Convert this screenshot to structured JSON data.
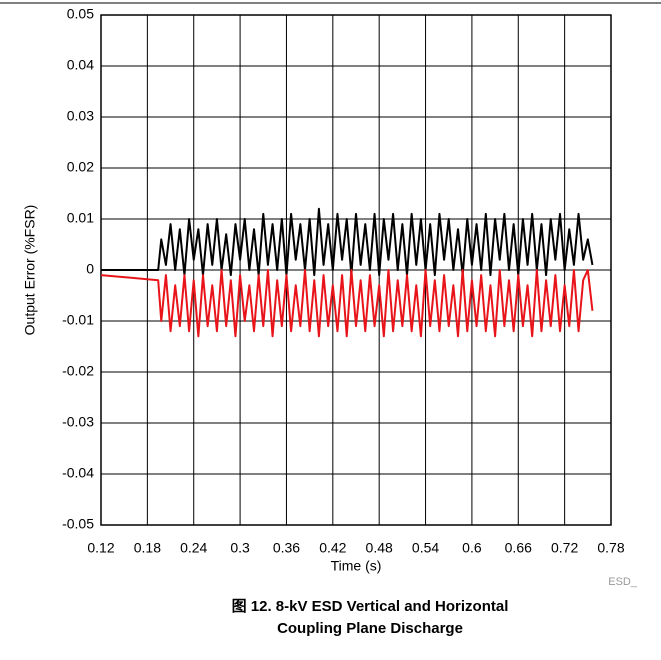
{
  "chart_data": {
    "type": "line",
    "ylabel": "Output Error (%FSR)",
    "xlabel": "Time (s)",
    "caption": "图 12. 8-kV ESD Vertical and Horizontal Coupling Plane Discharge",
    "source_label": "ESD_",
    "xlim": [
      0.12,
      0.78
    ],
    "xticks": [
      0.12,
      0.18,
      0.24,
      0.3,
      0.36,
      0.42,
      0.48,
      0.54,
      0.6,
      0.66,
      0.72,
      0.78
    ],
    "ylim": [
      -0.05,
      0.05
    ],
    "yticks": [
      0.05,
      0.04,
      0.03,
      0.02,
      0.01,
      0,
      -0.01,
      -0.02,
      -0.03,
      -0.04,
      -0.05
    ],
    "grid": true,
    "x": [
      0.12,
      0.194,
      0.198,
      0.204,
      0.21,
      0.216,
      0.222,
      0.228,
      0.234,
      0.24,
      0.246,
      0.252,
      0.258,
      0.264,
      0.27,
      0.276,
      0.282,
      0.288,
      0.294,
      0.3,
      0.306,
      0.312,
      0.318,
      0.324,
      0.33,
      0.336,
      0.342,
      0.348,
      0.354,
      0.36,
      0.366,
      0.372,
      0.378,
      0.384,
      0.39,
      0.396,
      0.402,
      0.408,
      0.414,
      0.42,
      0.426,
      0.432,
      0.438,
      0.444,
      0.45,
      0.456,
      0.462,
      0.468,
      0.474,
      0.48,
      0.486,
      0.492,
      0.498,
      0.504,
      0.51,
      0.516,
      0.522,
      0.528,
      0.534,
      0.54,
      0.546,
      0.552,
      0.558,
      0.564,
      0.57,
      0.576,
      0.582,
      0.588,
      0.594,
      0.6,
      0.606,
      0.612,
      0.618,
      0.624,
      0.63,
      0.636,
      0.642,
      0.648,
      0.654,
      0.66,
      0.666,
      0.672,
      0.678,
      0.684,
      0.69,
      0.696,
      0.702,
      0.708,
      0.714,
      0.72,
      0.726,
      0.732,
      0.738,
      0.744,
      0.75,
      0.756
    ],
    "series": [
      {
        "color": "#000000",
        "values": [
          0,
          0,
          0.006,
          0.001,
          0.009,
          0.0,
          0.008,
          -0.001,
          0.01,
          0.002,
          0.008,
          -0.001,
          0.009,
          0.001,
          0.01,
          0.0,
          0.007,
          -0.001,
          0.009,
          0.002,
          0.01,
          0.0,
          0.008,
          -0.001,
          0.011,
          0.001,
          0.009,
          0.0,
          0.01,
          -0.001,
          0.011,
          0.002,
          0.009,
          0.0,
          0.01,
          -0.001,
          0.012,
          0.001,
          0.009,
          0.0,
          0.011,
          0.002,
          0.01,
          -0.001,
          0.011,
          0.001,
          0.009,
          0.0,
          0.011,
          -0.001,
          0.01,
          0.002,
          0.011,
          0.0,
          0.009,
          -0.001,
          0.011,
          0.001,
          0.01,
          0.0,
          0.009,
          -0.001,
          0.011,
          0.002,
          0.01,
          0.0,
          0.008,
          -0.001,
          0.01,
          0.001,
          0.009,
          0.0,
          0.011,
          -0.001,
          0.01,
          0.002,
          0.011,
          0.0,
          0.009,
          -0.001,
          0.01,
          0.001,
          0.011,
          0.0,
          0.009,
          -0.001,
          0.01,
          0.002,
          0.011,
          0.0,
          0.008,
          0.001,
          0.011,
          0.002,
          0.006,
          0.001
        ]
      },
      {
        "color": "#e8141a",
        "values": [
          -0.001,
          -0.002,
          -0.01,
          -0.001,
          -0.012,
          -0.003,
          -0.011,
          -0.001,
          -0.012,
          -0.002,
          -0.013,
          -0.001,
          -0.011,
          -0.003,
          -0.012,
          0.0,
          -0.011,
          -0.002,
          -0.013,
          -0.001,
          -0.01,
          -0.003,
          -0.012,
          -0.001,
          -0.011,
          0.0,
          -0.013,
          -0.002,
          -0.011,
          -0.001,
          -0.012,
          -0.003,
          -0.011,
          0.0,
          -0.012,
          -0.002,
          -0.013,
          -0.001,
          -0.011,
          -0.003,
          -0.012,
          -0.001,
          -0.013,
          0.0,
          -0.011,
          -0.002,
          -0.012,
          -0.001,
          -0.011,
          -0.003,
          -0.013,
          0.0,
          -0.012,
          -0.002,
          -0.011,
          -0.001,
          -0.012,
          -0.003,
          -0.013,
          0.0,
          -0.011,
          -0.002,
          -0.012,
          -0.001,
          -0.011,
          -0.003,
          -0.013,
          0.0,
          -0.012,
          -0.002,
          -0.011,
          -0.001,
          -0.012,
          -0.003,
          -0.013,
          0.0,
          -0.011,
          -0.002,
          -0.012,
          -0.001,
          -0.011,
          -0.003,
          -0.013,
          0.0,
          -0.012,
          -0.002,
          -0.011,
          -0.001,
          -0.012,
          -0.003,
          -0.011,
          0.0,
          -0.012,
          -0.002,
          0.0,
          -0.008
        ]
      }
    ]
  }
}
